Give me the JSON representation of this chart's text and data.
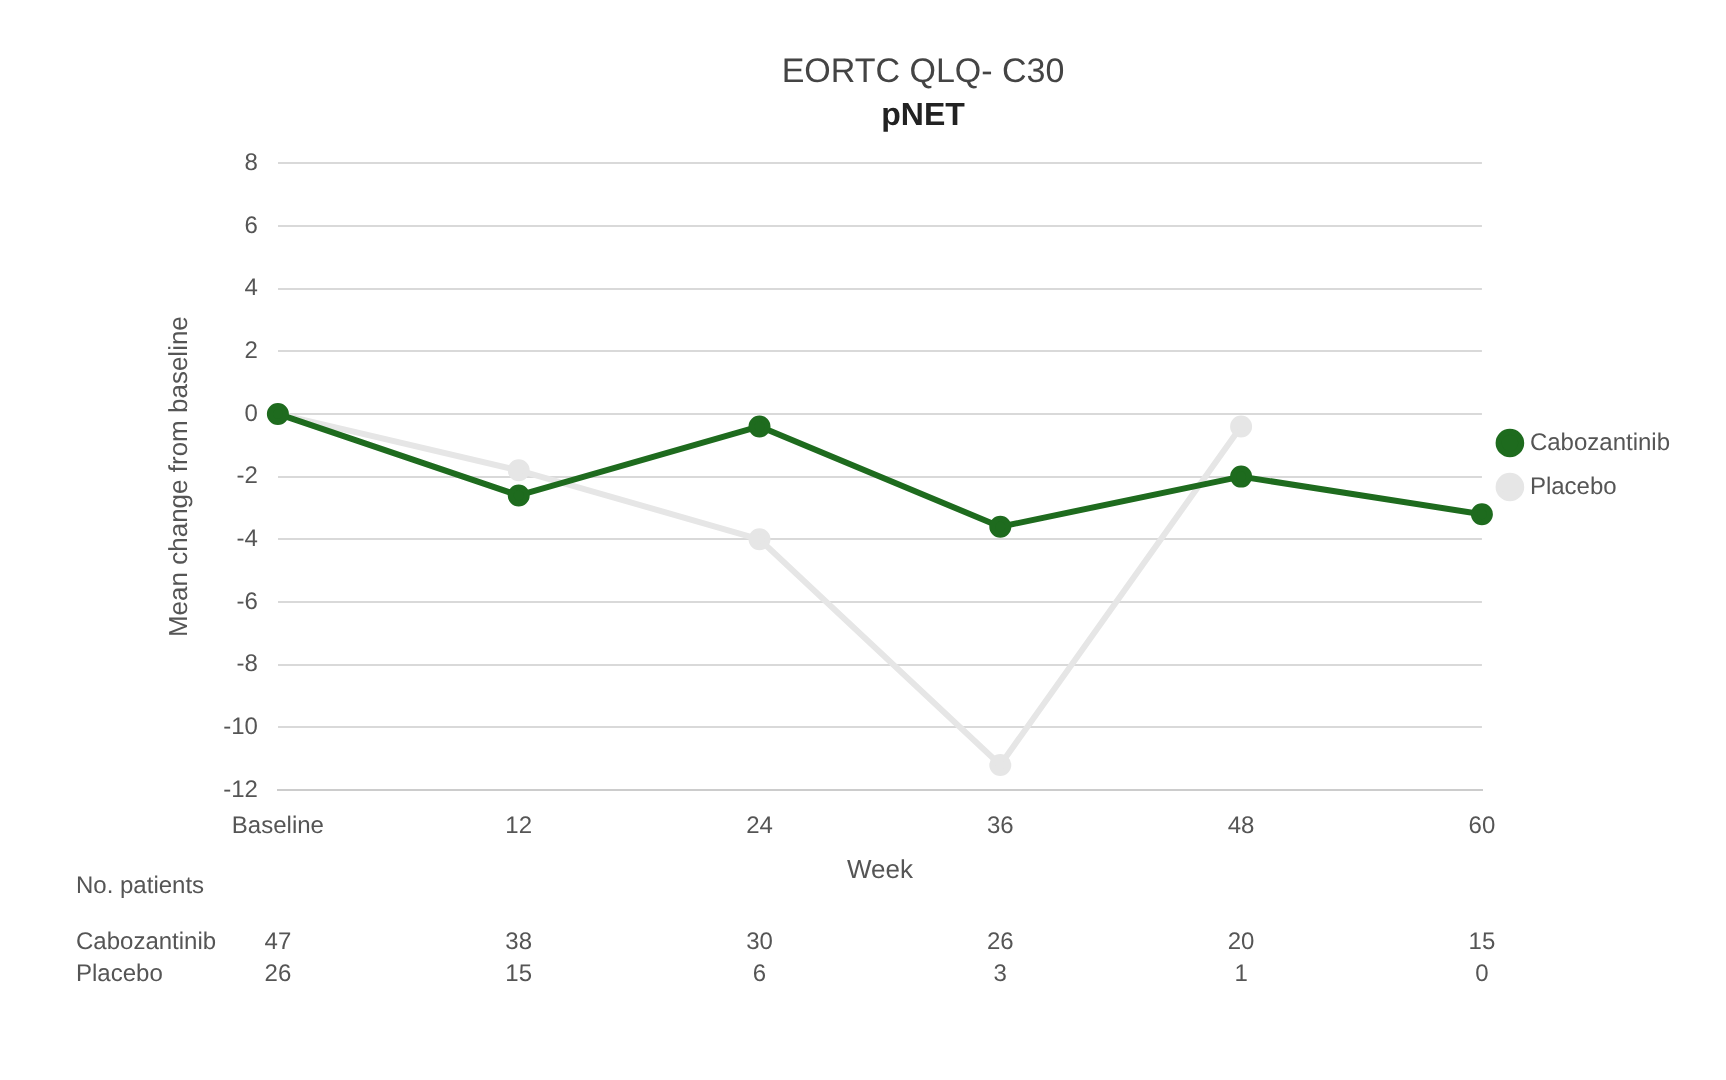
{
  "chart_data": {
    "type": "line",
    "title": "EORTC QLQ- C30",
    "subtitle": "pNET",
    "xlabel": "Week",
    "ylabel": "Mean change from baseline",
    "categories": [
      "Baseline",
      "12",
      "24",
      "36",
      "48",
      "60"
    ],
    "series": [
      {
        "name": "Cabozantinib",
        "color": "#1e6b1e",
        "values": [
          0,
          -2.6,
          -0.4,
          -3.6,
          -2.0,
          -3.2
        ]
      },
      {
        "name": "Placebo",
        "color": "#e6e6e6",
        "values": [
          0,
          -1.8,
          -4.0,
          -11.2,
          -0.4,
          null
        ]
      }
    ],
    "ylim": [
      -12,
      8
    ],
    "yticks": [
      -12,
      -10,
      -8,
      -6,
      -4,
      -2,
      0,
      2,
      4,
      6,
      8
    ],
    "grid": "y",
    "legend": "right",
    "marker": "circle",
    "line_style": "solid",
    "annotations": [
      "No. patients",
      "Cabozantinib",
      "47",
      "38",
      "30",
      "26",
      "20",
      "15",
      "Placebo",
      "26",
      "15",
      "6",
      "3",
      "1",
      "0"
    ]
  }
}
